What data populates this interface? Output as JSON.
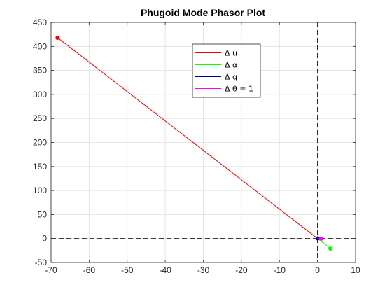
{
  "chart_data": {
    "type": "line",
    "title": "Phugoid Mode Phasor Plot",
    "xlabel": "",
    "ylabel": "",
    "xlim": [
      -70,
      10
    ],
    "ylim": [
      -50,
      450
    ],
    "xticks": [
      -70,
      -60,
      -50,
      -40,
      -30,
      -20,
      -10,
      0,
      10
    ],
    "yticks": [
      -50,
      0,
      50,
      100,
      150,
      200,
      250,
      300,
      350,
      400,
      450
    ],
    "grid": true,
    "legend_position": "top-right-center",
    "reference_lines": [
      {
        "orientation": "vertical",
        "value": 0,
        "style": "dashed",
        "color": "#000000"
      },
      {
        "orientation": "horizontal",
        "value": 0,
        "style": "dashed",
        "color": "#000000"
      }
    ],
    "series": [
      {
        "name": "Δ u",
        "color": "#ff0000",
        "x": [
          0,
          -68.3
        ],
        "y": [
          0,
          418
        ]
      },
      {
        "name": "Δ α",
        "color": "#00ff00",
        "x": [
          0,
          3.4
        ],
        "y": [
          0,
          -21
        ]
      },
      {
        "name": "Δ q",
        "color": "#000080",
        "x": [
          0,
          0.05
        ],
        "y": [
          0,
          0.3
        ]
      },
      {
        "name": "Δ θ = 1",
        "color": "#ff00ff",
        "x": [
          0,
          1
        ],
        "y": [
          0,
          0
        ]
      }
    ]
  }
}
